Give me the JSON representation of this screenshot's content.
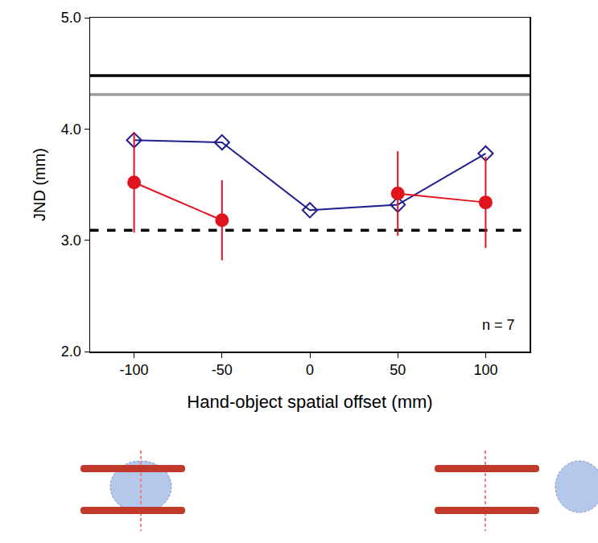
{
  "chart_data": {
    "type": "line",
    "x_label": "Hand-object spatial offset (mm)",
    "y_label": "JND (mm)",
    "x": [
      -100,
      -50,
      0,
      50,
      100
    ],
    "series": [
      {
        "color": "#1f1f8f",
        "marker": "open_diamond",
        "line_style": "solid",
        "values": [
          3.9,
          3.88,
          3.27,
          3.32,
          3.78
        ]
      },
      {
        "color": "#e0141e",
        "marker": "circle",
        "line_style": "solid",
        "values": [
          3.52,
          3.18,
          null,
          3.42,
          3.34
        ],
        "errors": [
          0.45,
          0.36,
          null,
          0.38,
          0.41
        ]
      }
    ],
    "reference_lines": [
      {
        "value": 4.48,
        "color": "#000000",
        "line_style": "solid"
      },
      {
        "value": 4.31,
        "color": "#999999",
        "line_style": "solid"
      },
      {
        "value": 3.09,
        "color": "#000000",
        "line_style": "dashed"
      }
    ],
    "annotations": [
      "n = 7"
    ],
    "xlim": [
      -125,
      125
    ],
    "xticks": [
      -100,
      -50,
      0,
      50,
      100
    ],
    "ylim": [
      2,
      5
    ],
    "yticks": [
      {
        "value": 2,
        "label": "2.0"
      },
      {
        "value": 3,
        "label": "3.0"
      },
      {
        "value": 4,
        "label": "4.0"
      },
      {
        "value": 5,
        "label": "5.0"
      }
    ],
    "grid": false
  }
}
